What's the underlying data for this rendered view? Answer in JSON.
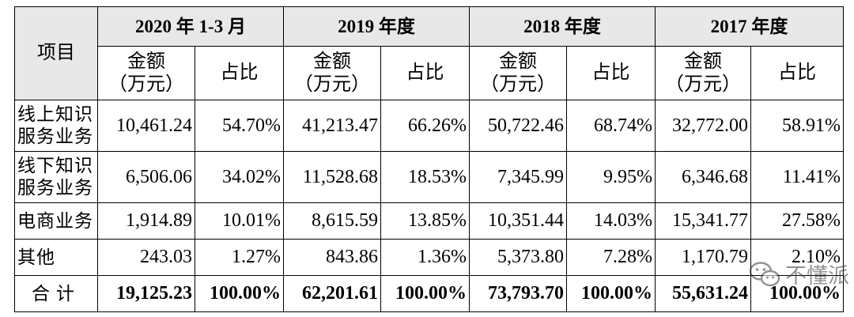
{
  "table": {
    "project_header": "项目",
    "years": [
      "2020 年 1-3 月",
      "2019 年度",
      "2018 年度",
      "2017 年度"
    ],
    "amount_header_line1": "金额",
    "amount_header_line2": "（万元）",
    "ratio_header": "占比",
    "rows": [
      {
        "category": [
          "线上知识",
          "服务业务"
        ],
        "cells": [
          "10,461.24",
          "54.70%",
          "41,213.47",
          "66.26%",
          "50,722.46",
          "68.74%",
          "32,772.00",
          "58.91%"
        ]
      },
      {
        "category": [
          "线下知识",
          "服务业务"
        ],
        "cells": [
          "6,506.06",
          "34.02%",
          "11,528.68",
          "18.53%",
          "7,345.99",
          "9.95%",
          "6,346.68",
          "11.41%"
        ]
      },
      {
        "category": [
          "电商业务"
        ],
        "cells": [
          "1,914.89",
          "10.01%",
          "8,615.59",
          "13.85%",
          "10,351.44",
          "14.03%",
          "15,341.77",
          "27.58%"
        ]
      },
      {
        "category": [
          "其他"
        ],
        "cells": [
          "243.03",
          "1.27%",
          "843.86",
          "1.36%",
          "5,373.80",
          "7.28%",
          "1,170.79",
          "2.10%"
        ]
      }
    ],
    "total": {
      "category": "合计",
      "cells": [
        "19,125.23",
        "100.00%",
        "62,201.61",
        "100.00%",
        "73,793.70",
        "100.00%",
        "55,631.24",
        "100.00%"
      ]
    }
  },
  "watermark": {
    "text": "不懂派",
    "icon": "wechat-icon"
  }
}
